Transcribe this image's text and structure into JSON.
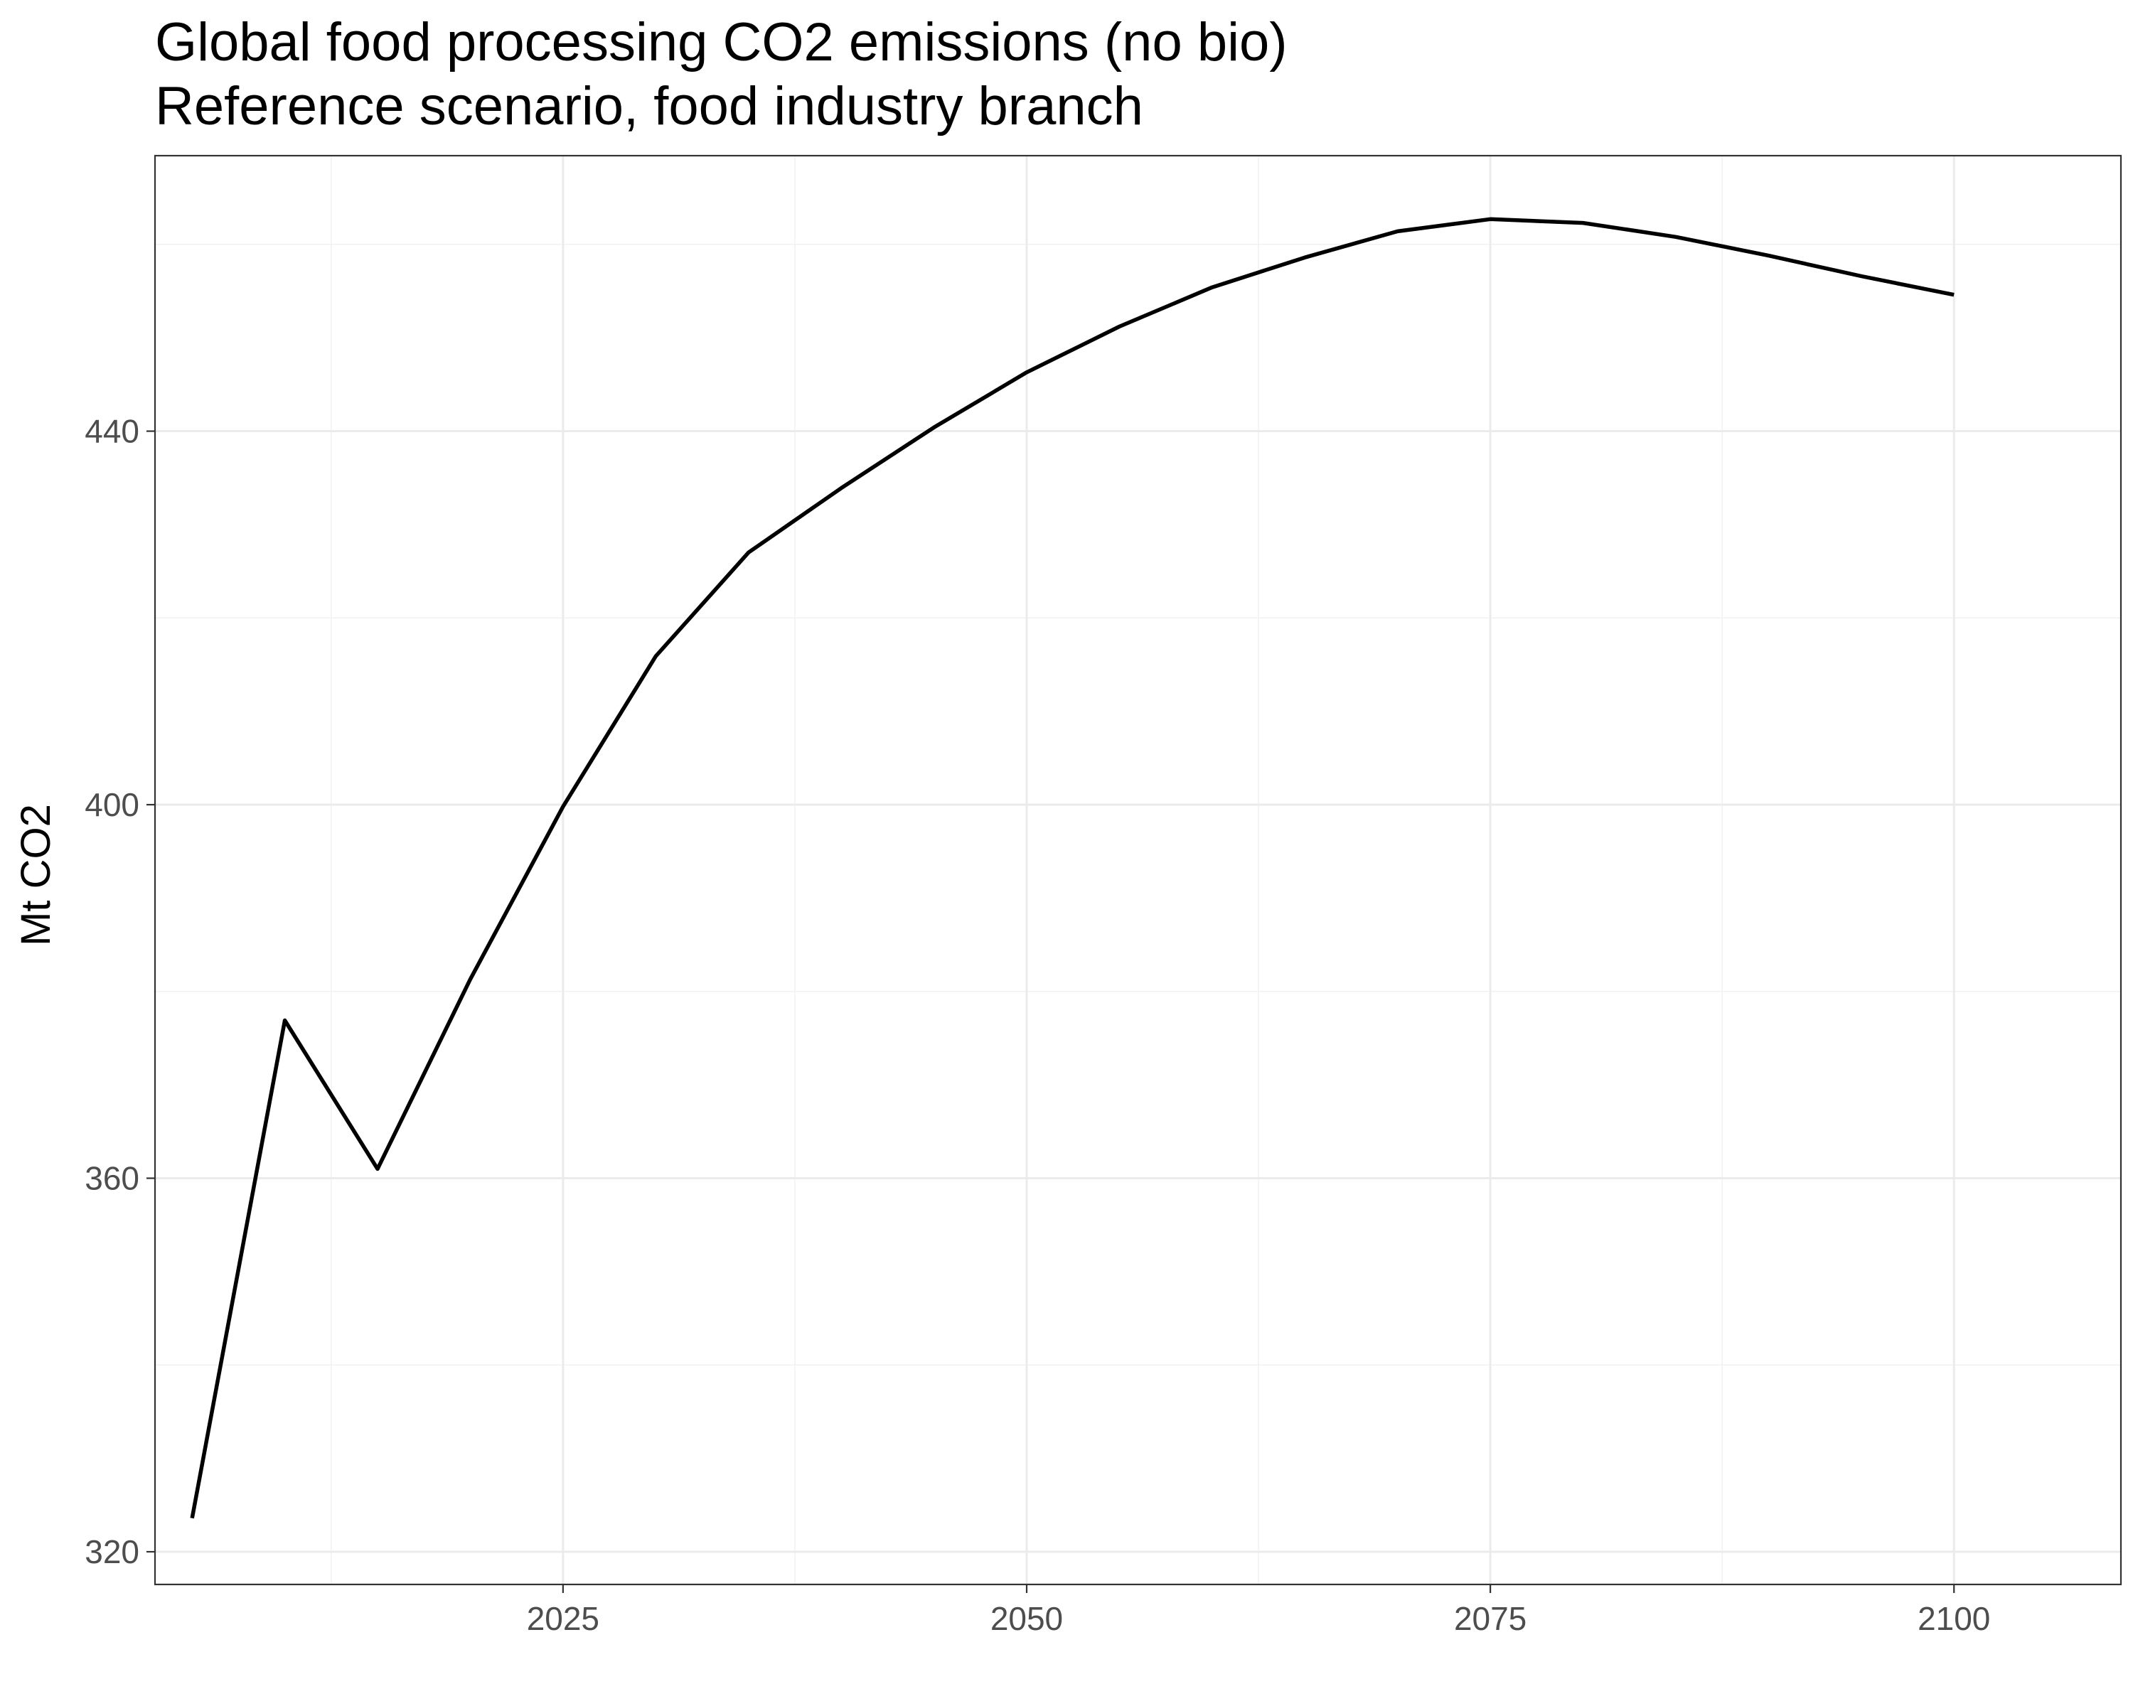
{
  "chart_data": {
    "type": "line",
    "title": "Global food processing CO2 emissions (no bio)",
    "subtitle": "Reference scenario, food industry branch",
    "xlabel": "",
    "ylabel": "Mt CO2",
    "xlim": [
      2003,
      2109
    ],
    "ylim": [
      316.5,
      469.5
    ],
    "x_ticks": [
      2025,
      2050,
      2075,
      2100
    ],
    "y_ticks": [
      320,
      360,
      400,
      440
    ],
    "grid": true,
    "legend": "none",
    "line_color": "#000000",
    "series": [
      {
        "x": [
          2005,
          2010,
          2015,
          2020,
          2025,
          2030,
          2035,
          2040,
          2045,
          2050,
          2055,
          2060,
          2065,
          2070,
          2075,
          2080,
          2085,
          2090,
          2095,
          2100
        ],
        "values": [
          323.6,
          376.9,
          361.0,
          381.3,
          399.8,
          415.9,
          427.0,
          433.9,
          440.4,
          446.3,
          451.2,
          455.4,
          458.6,
          461.4,
          462.7,
          462.3,
          460.8,
          458.8,
          456.6,
          454.6
        ]
      }
    ]
  }
}
